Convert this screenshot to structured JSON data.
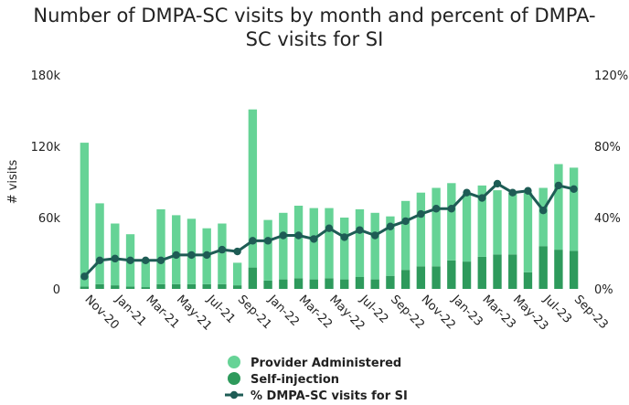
{
  "chart_data": {
    "type": "bar",
    "title": "Number of DMPA-SC visits by month and percent of DMPA-SC visits for SI",
    "title_lines": [
      "Number of DMPA-SC visits by month and percent of DMPA-",
      "SC visits for SI"
    ],
    "ylabel": "# visits",
    "y2label": "",
    "ylim": [
      0,
      180000
    ],
    "y2lim": [
      0,
      120
    ],
    "yticks": [
      "0",
      "60k",
      "120k",
      "180k"
    ],
    "y2ticks": [
      "0%",
      "40%",
      "80%",
      "120%"
    ],
    "x_tick_labels": [
      "Nov-20",
      "Jan-21",
      "Mar-21",
      "May-21",
      "Jul-21",
      "Sep-21",
      "Jan-22",
      "Mar-22",
      "May-22",
      "Jul-22",
      "Sep-22",
      "Nov-22",
      "Jan-23",
      "Mar-23",
      "May-23",
      "Jul-23",
      "Sep-23"
    ],
    "x": [
      "Nov-20",
      "Dec-20",
      "Jan-21",
      "Feb-21",
      "Mar-21",
      "Apr-21",
      "May-21",
      "Jun-21",
      "Jul-21",
      "Aug-21",
      "Sep-21",
      "Dec-21",
      "Jan-22",
      "Feb-22",
      "Mar-22",
      "Apr-22",
      "May-22",
      "Jun-22",
      "Jul-22",
      "Aug-22",
      "Sep-22",
      "Oct-22",
      "Nov-22",
      "Dec-22",
      "Jan-23",
      "Feb-23",
      "Mar-23",
      "Apr-23",
      "May-23",
      "Jun-23",
      "Jul-23",
      "Aug-23",
      "Sep-23"
    ],
    "series": [
      {
        "name": "Provider Administered",
        "type": "bar",
        "color": "#66d396",
        "values": [
          121000,
          68000,
          52000,
          44000,
          23000,
          63000,
          58000,
          55000,
          47000,
          51000,
          19000,
          133000,
          51000,
          56000,
          61000,
          60000,
          59000,
          52000,
          57000,
          56000,
          50000,
          58000,
          62000,
          66000,
          65000,
          57000,
          60000,
          54000,
          52000,
          67000,
          49000,
          72000,
          70000
        ]
      },
      {
        "name": "Self-injection",
        "type": "bar",
        "color": "#2e9a5c",
        "values": [
          2000,
          4000,
          3000,
          2000,
          1500,
          4000,
          4000,
          4000,
          4000,
          4000,
          3000,
          18000,
          7000,
          8000,
          9000,
          8000,
          9000,
          8000,
          10000,
          8000,
          11000,
          16000,
          19000,
          19000,
          24000,
          23000,
          27000,
          29000,
          29000,
          14000,
          36000,
          33000,
          32000
        ]
      },
      {
        "name": "% DMPA-SC visits for SI",
        "type": "line",
        "color": "#1e5c55",
        "values": [
          7,
          16,
          17,
          16,
          16,
          16,
          19,
          19,
          19,
          22,
          21,
          27,
          27,
          30,
          30,
          28,
          34,
          29,
          33,
          30,
          35,
          38,
          42,
          45,
          45,
          54,
          51,
          59,
          54,
          55,
          44,
          58,
          56
        ]
      }
    ],
    "legend_position": "bottom",
    "grid": false
  }
}
